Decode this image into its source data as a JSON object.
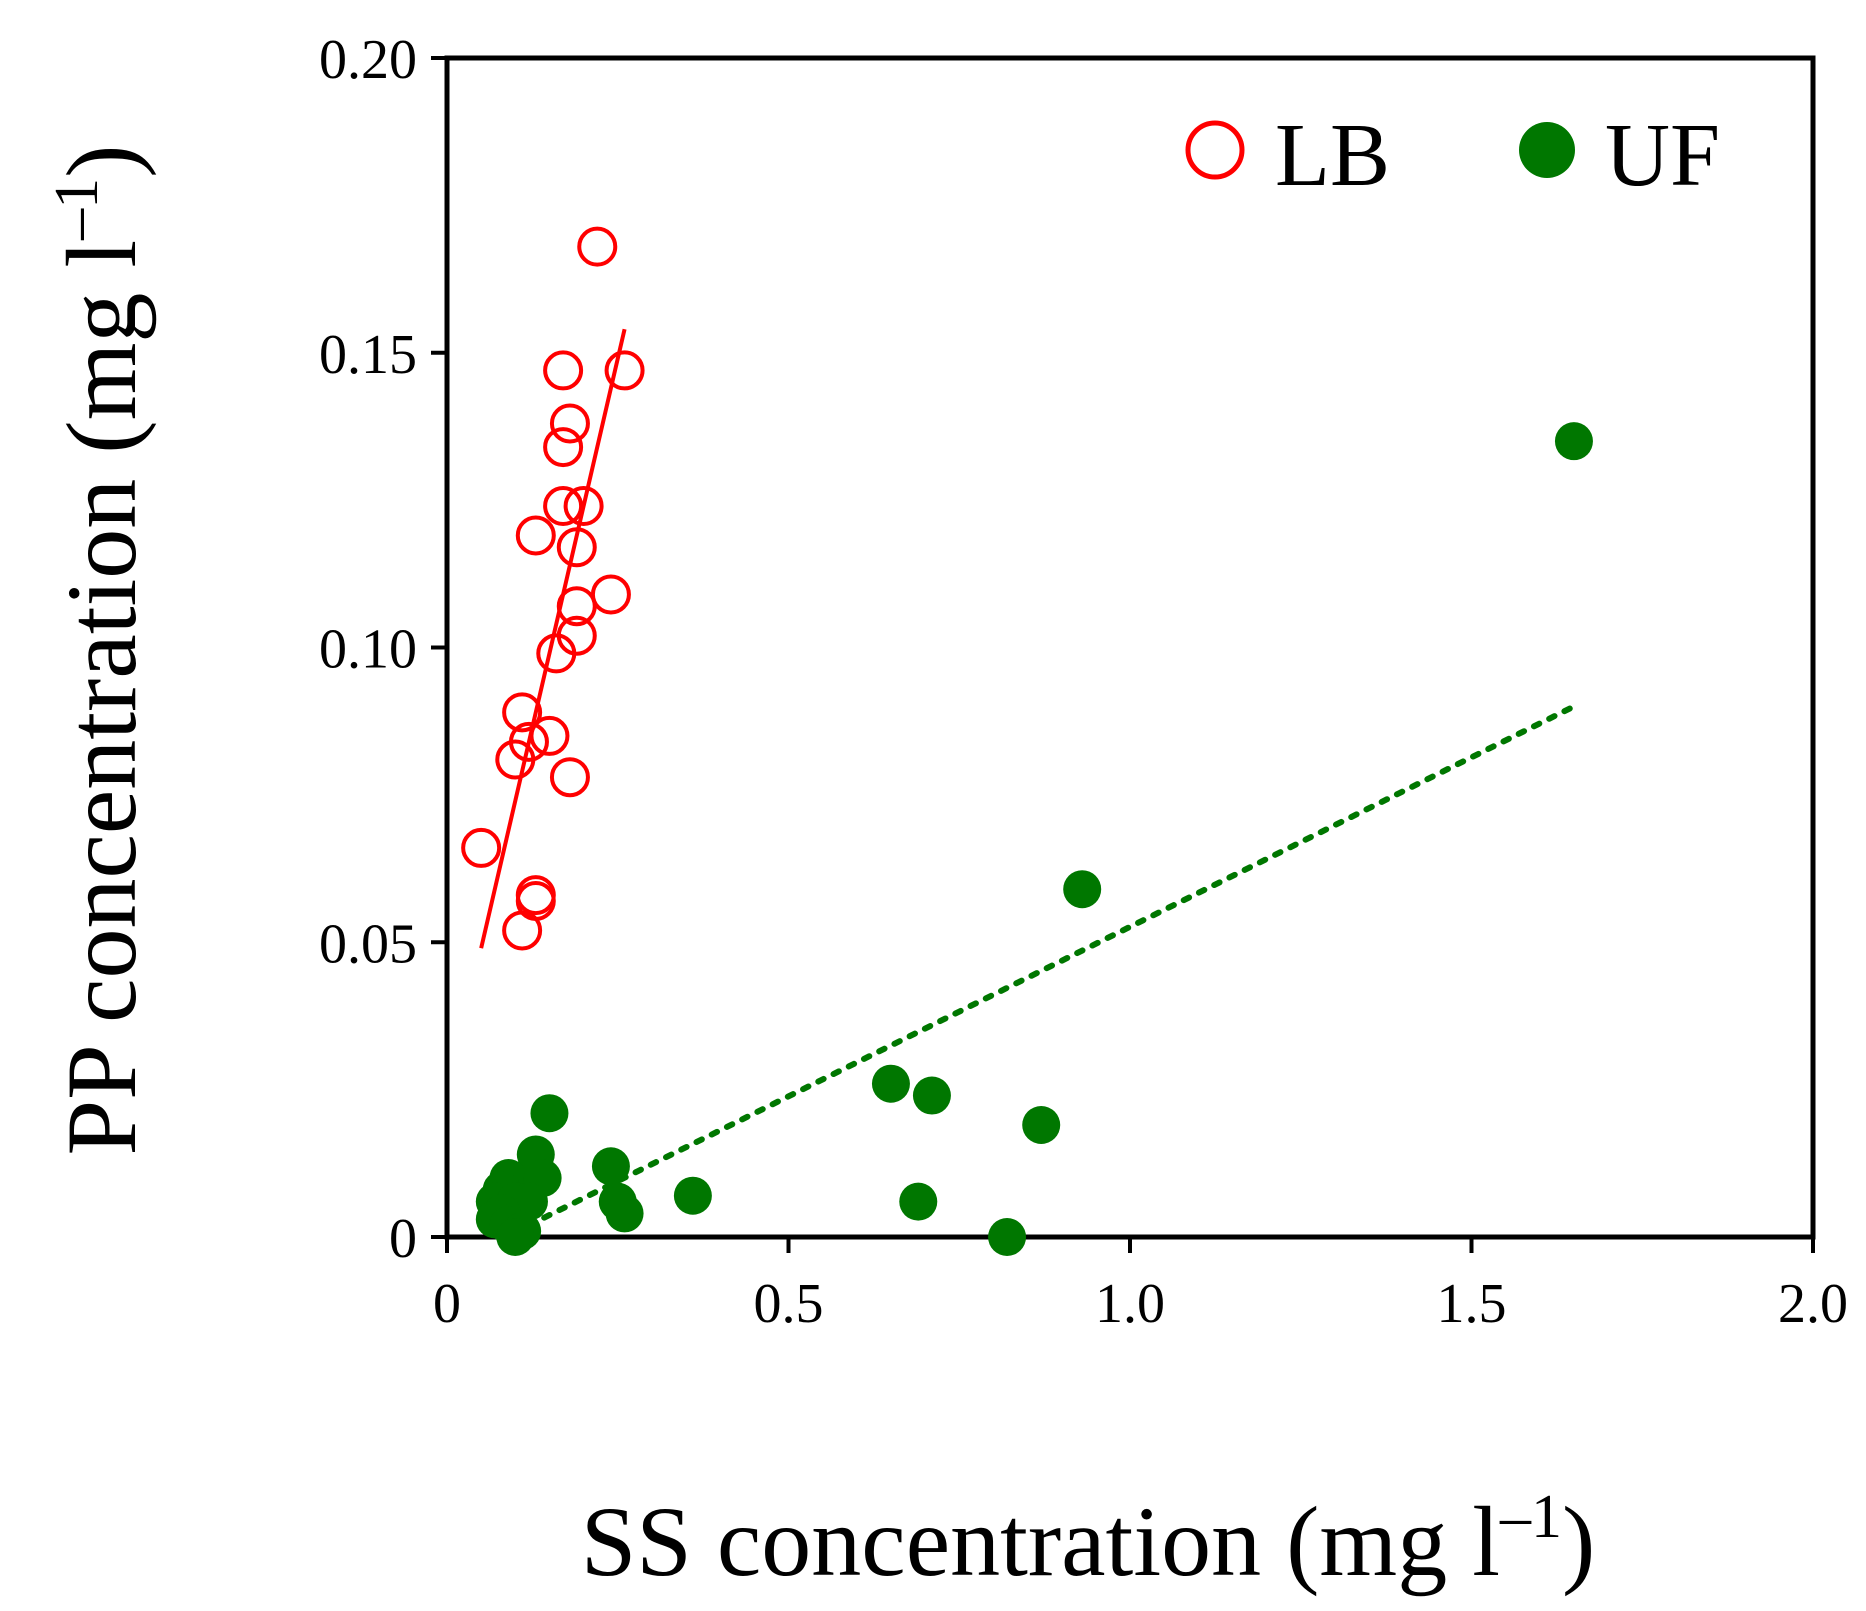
{
  "chart_data": {
    "type": "scatter",
    "xlabel": {
      "main": "SS concentration (mg l",
      "sup": "–1",
      "close": ")"
    },
    "ylabel": {
      "main": "PP concentration (mg l",
      "sup": "–1",
      "close": ")"
    },
    "xlim": [
      0,
      2.0
    ],
    "ylim": [
      0,
      0.2
    ],
    "xticks": [
      {
        "value": 0,
        "label": "0"
      },
      {
        "value": 0.5,
        "label": "0.5"
      },
      {
        "value": 1.0,
        "label": "1.0"
      },
      {
        "value": 1.5,
        "label": "1.5"
      },
      {
        "value": 2.0,
        "label": "2.0"
      }
    ],
    "yticks": [
      {
        "value": 0,
        "label": "0"
      },
      {
        "value": 0.05,
        "label": "0.05"
      },
      {
        "value": 0.1,
        "label": "0.10"
      },
      {
        "value": 0.15,
        "label": "0.15"
      },
      {
        "value": 0.2,
        "label": "0.20"
      }
    ],
    "grid": false,
    "legend_position": "top-right",
    "series": [
      {
        "name": "LB",
        "marker": "open-circle",
        "color": "#ff0000",
        "points": [
          [
            0.22,
            0.168
          ],
          [
            0.26,
            0.147
          ],
          [
            0.17,
            0.147
          ],
          [
            0.18,
            0.138
          ],
          [
            0.17,
            0.134
          ],
          [
            0.2,
            0.124
          ],
          [
            0.17,
            0.124
          ],
          [
            0.13,
            0.119
          ],
          [
            0.19,
            0.117
          ],
          [
            0.24,
            0.109
          ],
          [
            0.19,
            0.107
          ],
          [
            0.19,
            0.102
          ],
          [
            0.16,
            0.099
          ],
          [
            0.11,
            0.089
          ],
          [
            0.15,
            0.085
          ],
          [
            0.12,
            0.084
          ],
          [
            0.1,
            0.081
          ],
          [
            0.18,
            0.078
          ],
          [
            0.05,
            0.066
          ],
          [
            0.13,
            0.058
          ],
          [
            0.13,
            0.057
          ],
          [
            0.11,
            0.052
          ]
        ],
        "trend": {
          "style": "solid",
          "x": [
            0.05,
            0.26
          ],
          "y": [
            0.049,
            0.154
          ]
        }
      },
      {
        "name": "UF",
        "marker": "filled-circle",
        "color": "#007700",
        "points": [
          [
            1.65,
            0.135
          ],
          [
            0.93,
            0.059
          ],
          [
            0.65,
            0.026
          ],
          [
            0.71,
            0.024
          ],
          [
            0.87,
            0.019
          ],
          [
            0.15,
            0.021
          ],
          [
            0.13,
            0.014
          ],
          [
            0.24,
            0.012
          ],
          [
            0.36,
            0.007
          ],
          [
            0.69,
            0.006
          ],
          [
            0.82,
            0.0
          ],
          [
            0.09,
            0.01
          ],
          [
            0.14,
            0.01
          ],
          [
            0.08,
            0.008
          ],
          [
            0.07,
            0.006
          ],
          [
            0.1,
            0.006
          ],
          [
            0.12,
            0.006
          ],
          [
            0.25,
            0.006
          ],
          [
            0.26,
            0.004
          ],
          [
            0.08,
            0.004
          ],
          [
            0.07,
            0.003
          ],
          [
            0.09,
            0.002
          ],
          [
            0.11,
            0.001
          ],
          [
            0.1,
            0.0
          ]
        ],
        "trend": {
          "style": "dotted",
          "x": [
            0.12,
            1.65
          ],
          "y": [
            0.002,
            0.09
          ]
        }
      }
    ]
  }
}
